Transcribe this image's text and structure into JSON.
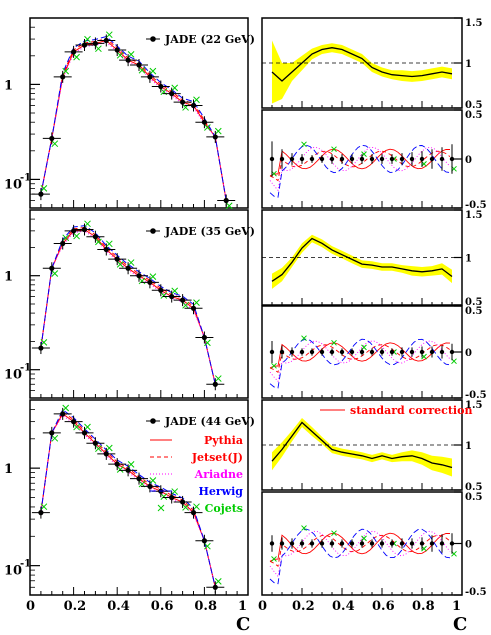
{
  "figure": {
    "xlabel": "C",
    "left_ticks": [
      "0",
      "0.2",
      "0.4",
      "0.6",
      "0.8",
      "1"
    ],
    "right_ticks": [
      "0",
      "0.2",
      "0.4",
      "0.6",
      "0.8",
      "1"
    ]
  },
  "legend": {
    "data_label": "JADE (44 GeV)",
    "entries": [
      {
        "name": "Pythia",
        "color": "#ff0000"
      },
      {
        "name": "Jetset(J)",
        "color": "#ff0000"
      },
      {
        "name": "Ariadne",
        "color": "#ff00ff"
      },
      {
        "name": "Herwig",
        "color": "#0000ff"
      },
      {
        "name": "Cojets",
        "color": "#00cc00"
      }
    ],
    "correction_label": "standard correction"
  },
  "chart_data": [
    {
      "type": "line",
      "panel": "left-22",
      "data_label": "JADE (22 GeV)",
      "x": [
        0.05,
        0.1,
        0.15,
        0.2,
        0.25,
        0.3,
        0.35,
        0.4,
        0.45,
        0.5,
        0.55,
        0.6,
        0.65,
        0.7,
        0.75,
        0.8,
        0.85,
        0.9
      ],
      "y": [
        0.07,
        0.27,
        1.2,
        2.2,
        2.6,
        2.7,
        2.9,
        2.3,
        1.8,
        1.6,
        1.2,
        0.95,
        0.8,
        0.65,
        0.6,
        0.4,
        0.28,
        0.06
      ],
      "ylim": [
        0.05,
        5
      ],
      "yscale": "log",
      "yticks": [
        "1",
        "10-1"
      ],
      "xlim": [
        0,
        1
      ]
    },
    {
      "type": "line",
      "panel": "left-35",
      "data_label": "JADE (35 GeV)",
      "x": [
        0.05,
        0.1,
        0.15,
        0.2,
        0.25,
        0.3,
        0.35,
        0.4,
        0.45,
        0.5,
        0.55,
        0.6,
        0.65,
        0.7,
        0.75,
        0.8,
        0.85
      ],
      "y": [
        0.17,
        1.2,
        2.2,
        3.0,
        3.1,
        2.6,
        1.9,
        1.5,
        1.2,
        1.0,
        0.85,
        0.7,
        0.6,
        0.55,
        0.45,
        0.22,
        0.07
      ],
      "ylim": [
        0.05,
        5
      ],
      "yscale": "log",
      "yticks": [
        "1",
        "10-1"
      ],
      "xlim": [
        0,
        1
      ]
    },
    {
      "type": "line",
      "panel": "left-44",
      "data_label": "JADE (44 GeV)",
      "x": [
        0.05,
        0.1,
        0.15,
        0.2,
        0.25,
        0.3,
        0.35,
        0.4,
        0.45,
        0.5,
        0.55,
        0.6,
        0.65,
        0.7,
        0.75,
        0.8,
        0.85
      ],
      "y": [
        0.35,
        2.3,
        3.6,
        3.0,
        2.3,
        1.8,
        1.4,
        1.1,
        0.95,
        0.78,
        0.65,
        0.58,
        0.5,
        0.45,
        0.35,
        0.18,
        0.06
      ],
      "ylim": [
        0.05,
        5
      ],
      "yscale": "log",
      "yticks": [
        "1",
        "10-1"
      ],
      "xlim": [
        0,
        1
      ]
    },
    {
      "type": "area",
      "panel": "right-22-corr",
      "x": [
        0.05,
        0.1,
        0.15,
        0.2,
        0.25,
        0.3,
        0.35,
        0.4,
        0.45,
        0.5,
        0.55,
        0.6,
        0.65,
        0.7,
        0.75,
        0.8,
        0.85,
        0.9,
        0.95
      ],
      "y": [
        0.9,
        0.8,
        0.9,
        1.0,
        1.1,
        1.15,
        1.17,
        1.15,
        1.1,
        1.05,
        0.95,
        0.9,
        0.87,
        0.86,
        0.85,
        0.86,
        0.88,
        0.9,
        0.88
      ],
      "band": [
        0.35,
        0.2,
        0.1,
        0.08,
        0.06,
        0.05,
        0.05,
        0.05,
        0.05,
        0.05,
        0.05,
        0.05,
        0.05,
        0.06,
        0.06,
        0.06,
        0.06,
        0.06,
        0.06
      ],
      "ylim": [
        0.5,
        1.5
      ],
      "yticks": [
        "0.5",
        "1",
        "1.5"
      ]
    },
    {
      "type": "line",
      "panel": "right-22-diff",
      "x": [
        0.05,
        0.1,
        0.15,
        0.2,
        0.25,
        0.3,
        0.35,
        0.4,
        0.45,
        0.5,
        0.55,
        0.6,
        0.65,
        0.7,
        0.75,
        0.8,
        0.85,
        0.9,
        0.95
      ],
      "y": [
        0,
        0,
        0,
        0,
        0,
        0,
        0,
        0,
        0,
        0,
        0,
        0,
        0,
        0,
        0,
        0,
        0,
        0,
        0
      ],
      "yerr": [
        0.18,
        0.1,
        0.06,
        0.05,
        0.04,
        0.04,
        0.05,
        0.05,
        0.05,
        0.05,
        0.05,
        0.05,
        0.05,
        0.06,
        0.07,
        0.08,
        0.1,
        0.12,
        0.15
      ],
      "ylim": [
        -0.5,
        0.5
      ],
      "yticks": [
        "-0.5",
        "0",
        "0.5"
      ]
    },
    {
      "type": "area",
      "panel": "right-35-corr",
      "x": [
        0.05,
        0.1,
        0.15,
        0.2,
        0.25,
        0.3,
        0.35,
        0.4,
        0.45,
        0.5,
        0.55,
        0.6,
        0.65,
        0.7,
        0.75,
        0.8,
        0.85,
        0.9,
        0.95
      ],
      "y": [
        0.75,
        0.82,
        0.95,
        1.1,
        1.2,
        1.15,
        1.08,
        1.03,
        0.98,
        0.93,
        0.92,
        0.9,
        0.9,
        0.88,
        0.86,
        0.85,
        0.86,
        0.88,
        0.8
      ],
      "band": [
        0.08,
        0.07,
        0.05,
        0.05,
        0.04,
        0.04,
        0.04,
        0.04,
        0.04,
        0.04,
        0.04,
        0.04,
        0.04,
        0.04,
        0.05,
        0.05,
        0.05,
        0.06,
        0.07
      ],
      "ylim": [
        0.5,
        1.5
      ],
      "yticks": [
        "0.5",
        "1",
        "1.5"
      ]
    },
    {
      "type": "line",
      "panel": "right-35-diff",
      "x": [
        0.05,
        0.1,
        0.15,
        0.2,
        0.25,
        0.3,
        0.35,
        0.4,
        0.45,
        0.5,
        0.55,
        0.6,
        0.65,
        0.7,
        0.75,
        0.8,
        0.85,
        0.9,
        0.95
      ],
      "y": [
        0,
        0,
        0,
        0,
        0,
        0,
        0,
        0,
        0,
        0,
        0,
        0,
        0,
        0,
        0,
        0,
        0,
        0,
        0
      ],
      "yerr": [
        0.12,
        0.07,
        0.05,
        0.04,
        0.04,
        0.04,
        0.04,
        0.04,
        0.04,
        0.04,
        0.04,
        0.04,
        0.04,
        0.05,
        0.05,
        0.06,
        0.06,
        0.07,
        0.09
      ],
      "ylim": [
        -0.5,
        0.5
      ],
      "yticks": [
        "-0.5",
        "0",
        "0.5"
      ]
    },
    {
      "type": "area",
      "panel": "right-44-corr",
      "x": [
        0.05,
        0.1,
        0.15,
        0.2,
        0.25,
        0.3,
        0.35,
        0.4,
        0.45,
        0.5,
        0.55,
        0.6,
        0.65,
        0.7,
        0.75,
        0.8,
        0.85,
        0.9,
        0.95
      ],
      "y": [
        0.82,
        0.95,
        1.1,
        1.25,
        1.15,
        1.05,
        0.95,
        0.92,
        0.9,
        0.88,
        0.85,
        0.88,
        0.85,
        0.87,
        0.88,
        0.85,
        0.8,
        0.78,
        0.75
      ],
      "band": [
        0.1,
        0.08,
        0.06,
        0.05,
        0.05,
        0.04,
        0.04,
        0.04,
        0.04,
        0.04,
        0.04,
        0.04,
        0.04,
        0.05,
        0.06,
        0.07,
        0.08,
        0.09,
        0.1
      ],
      "ylim": [
        0.5,
        1.5
      ],
      "yticks": [
        "0.5",
        "1",
        "1.5"
      ]
    },
    {
      "type": "line",
      "panel": "right-44-diff",
      "x": [
        0.05,
        0.1,
        0.15,
        0.2,
        0.25,
        0.3,
        0.35,
        0.4,
        0.45,
        0.5,
        0.55,
        0.6,
        0.65,
        0.7,
        0.75,
        0.8,
        0.85,
        0.9,
        0.95
      ],
      "y": [
        0,
        0,
        0,
        0,
        0,
        0,
        0,
        0,
        0,
        0,
        0,
        0,
        0,
        0,
        0,
        0,
        0,
        0,
        0
      ],
      "yerr": [
        0.08,
        0.06,
        0.05,
        0.04,
        0.04,
        0.04,
        0.04,
        0.04,
        0.04,
        0.04,
        0.04,
        0.04,
        0.04,
        0.05,
        0.05,
        0.06,
        0.08,
        0.09,
        0.1
      ],
      "ylim": [
        -0.5,
        0.5
      ],
      "yticks": [
        "-0.5",
        "0",
        "0.5"
      ]
    }
  ]
}
